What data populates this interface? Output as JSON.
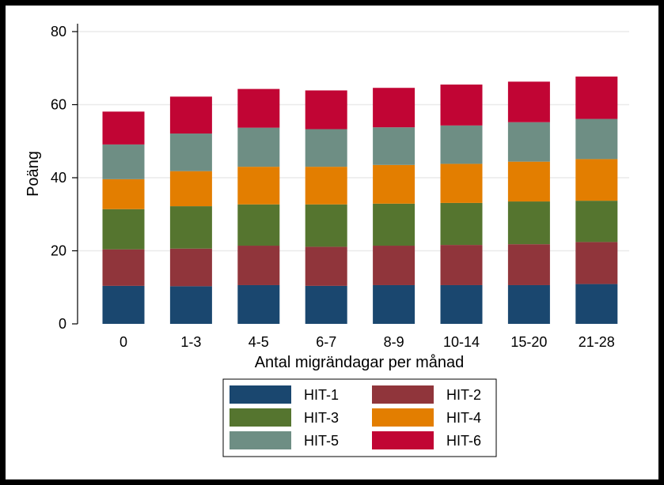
{
  "chart_data": {
    "type": "bar",
    "stacked": true,
    "title": "",
    "xlabel": "Antal migrändagar per månad",
    "ylabel": "Poäng",
    "ylim": [
      0,
      80
    ],
    "yticks": [
      0,
      20,
      40,
      60,
      80
    ],
    "grid": true,
    "legend_position": "bottom",
    "categories": [
      "0",
      "1-3",
      "4-5",
      "6-7",
      "8-9",
      "10-14",
      "15-20",
      "21-28"
    ],
    "series": [
      {
        "name": "HIT-1",
        "color": "#1a476f",
        "values": [
          10.4,
          10.3,
          10.6,
          10.4,
          10.6,
          10.6,
          10.6,
          10.9
        ]
      },
      {
        "name": "HIT-2",
        "color": "#90353b",
        "values": [
          10.0,
          10.3,
          10.8,
          10.7,
          10.8,
          11.0,
          11.2,
          11.5
        ]
      },
      {
        "name": "HIT-3",
        "color": "#55752f",
        "values": [
          11.0,
          11.6,
          11.3,
          11.6,
          11.5,
          11.5,
          11.7,
          11.3
        ]
      },
      {
        "name": "HIT-4",
        "color": "#e37e00",
        "values": [
          8.2,
          9.6,
          10.3,
          10.3,
          10.6,
          10.7,
          10.9,
          11.4
        ]
      },
      {
        "name": "HIT-5",
        "color": "#6e8e84",
        "values": [
          9.5,
          10.3,
          10.7,
          10.3,
          10.3,
          10.5,
          10.8,
          11.0
        ]
      },
      {
        "name": "HIT-6",
        "color": "#c10534",
        "values": [
          9.0,
          10.1,
          10.6,
          10.6,
          10.8,
          11.2,
          11.1,
          11.6
        ]
      }
    ]
  }
}
